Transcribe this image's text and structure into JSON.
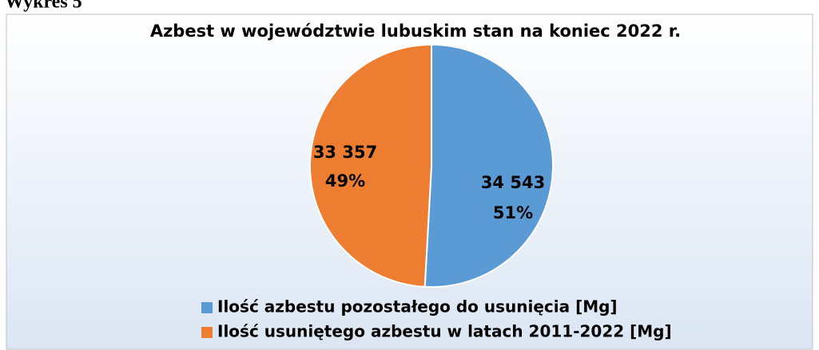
{
  "header": "Wykres 5",
  "chart_data": {
    "type": "pie",
    "title": "Azbest w województwie lubuskim stan na koniec 2022 r.",
    "categories": [
      "Ilość azbestu pozostałego do usunięcia [Mg]",
      "Ilość usuniętego azbestu w latach 2011-2022 [Mg]"
    ],
    "values": [
      34543,
      33357
    ],
    "value_labels": [
      "34 543",
      "33 357"
    ],
    "percent_labels": [
      "51%",
      "49%"
    ],
    "colors": [
      "#5b9bd5",
      "#ed7d31"
    ],
    "legend": "bottom"
  }
}
